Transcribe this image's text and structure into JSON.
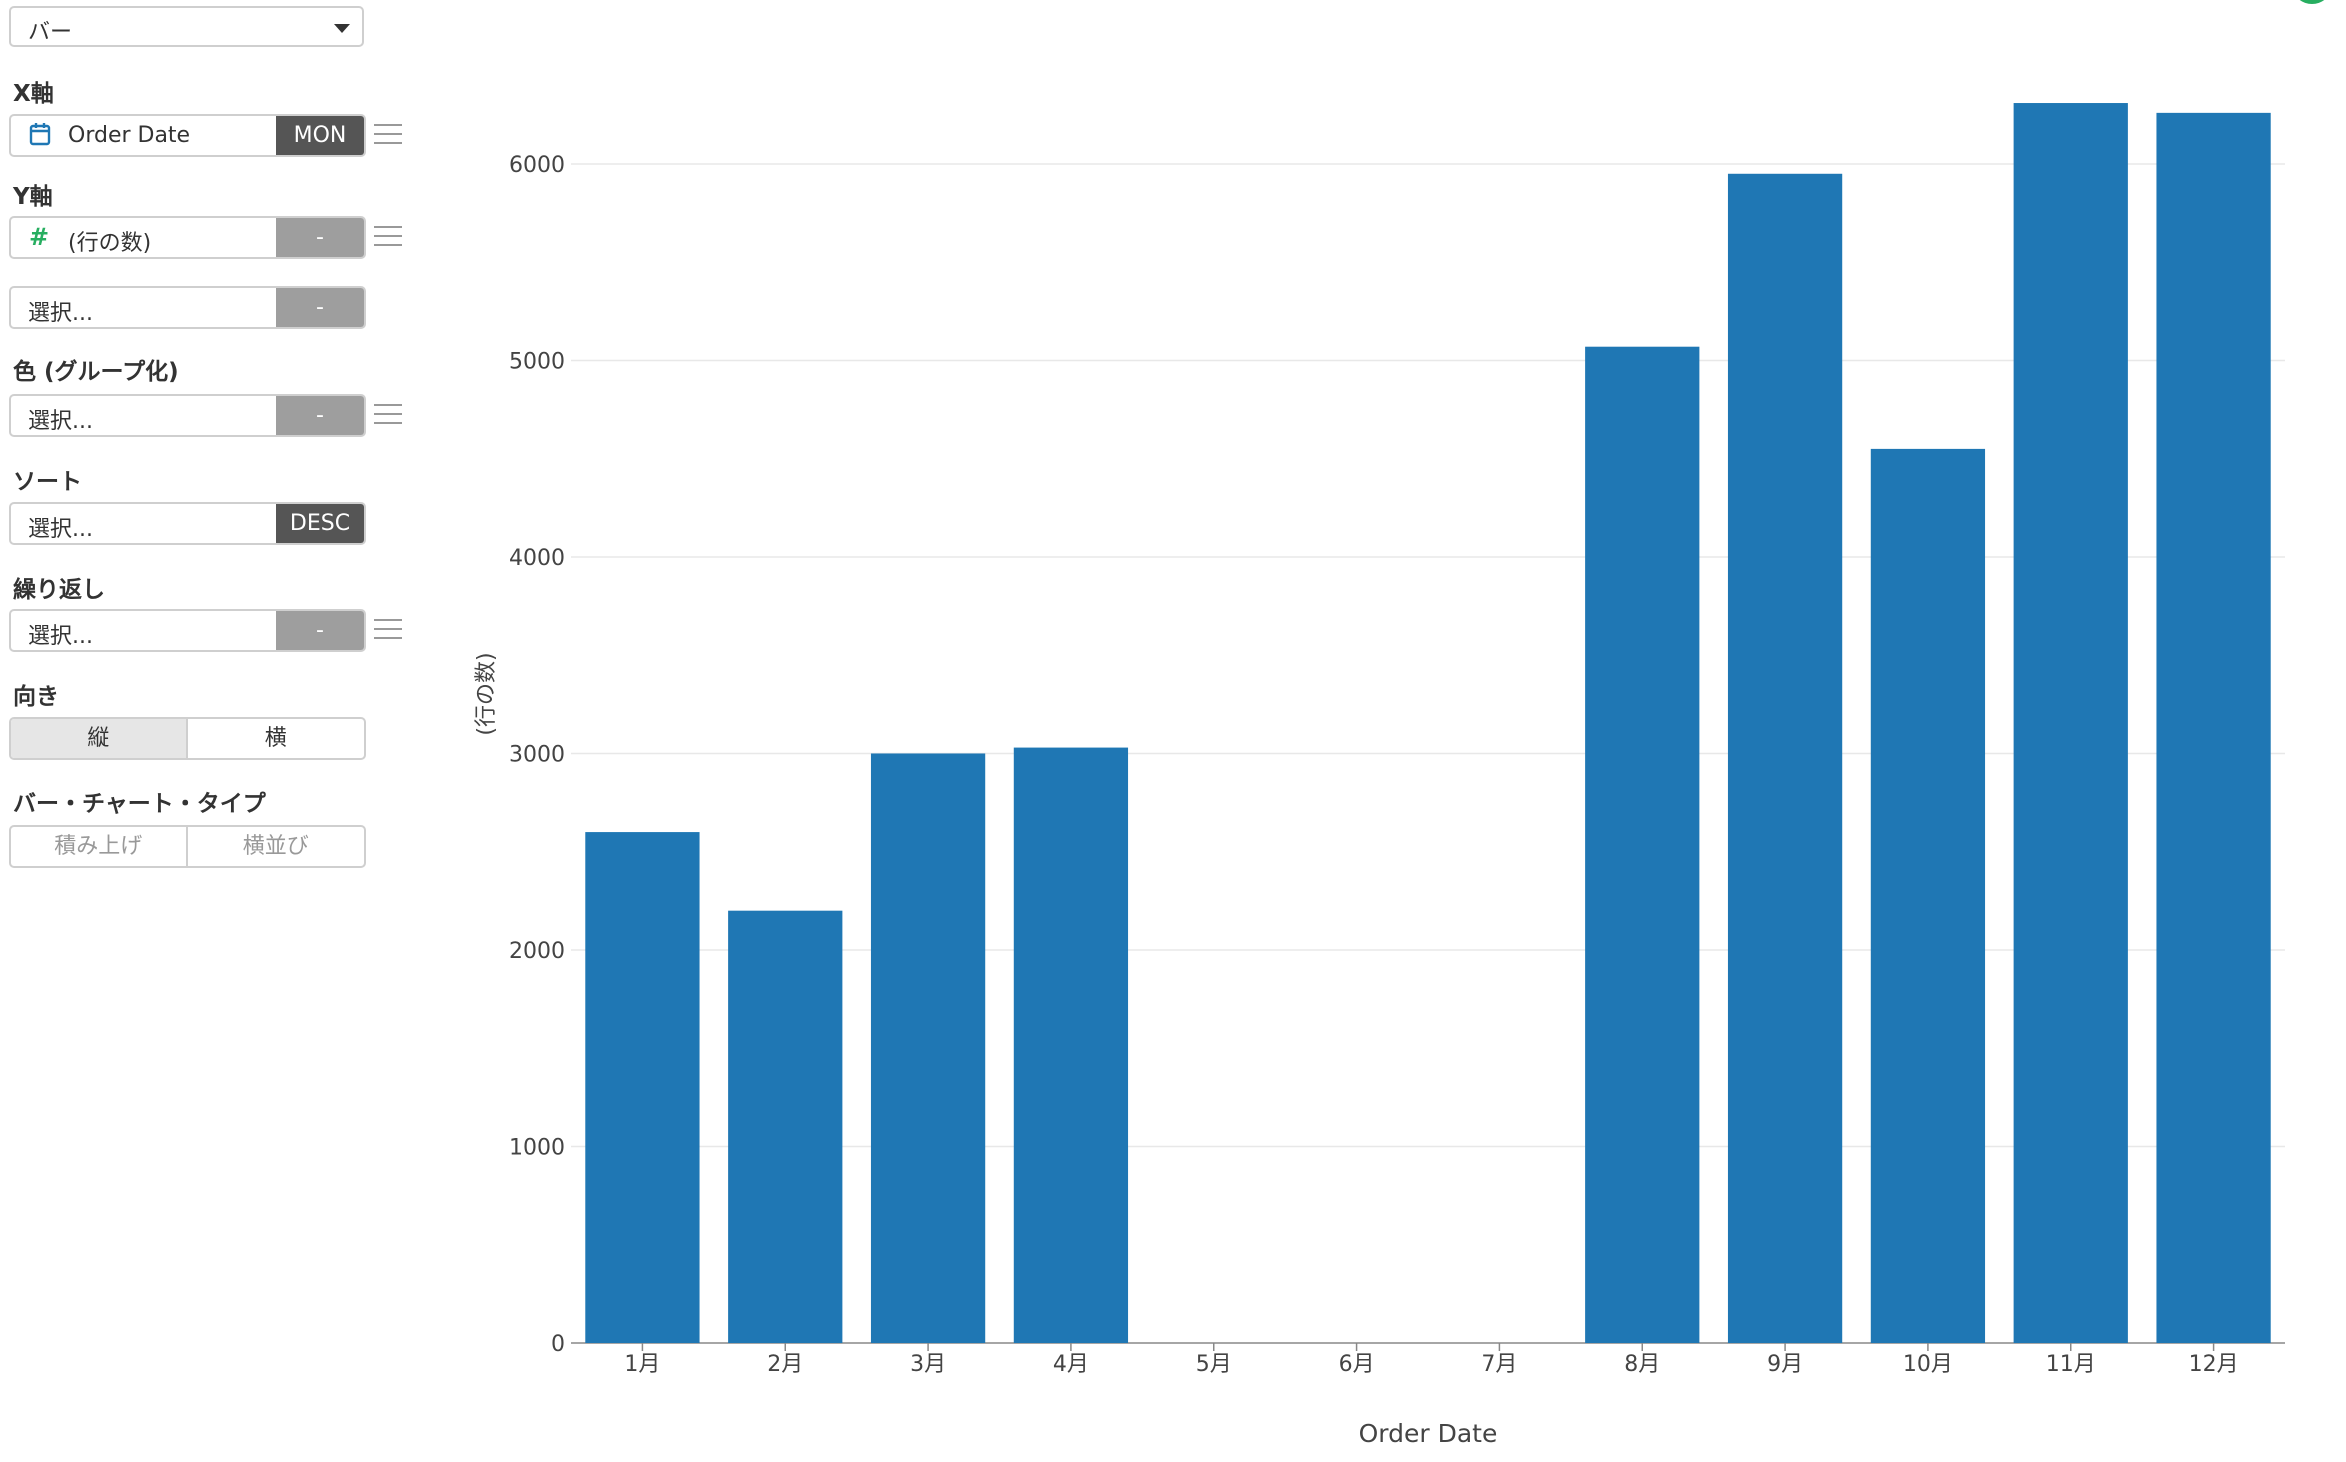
{
  "panel": {
    "chart_type": "バー",
    "x_axis": {
      "label": "X軸",
      "field": "Order Date",
      "agg": "MON"
    },
    "y_axis": {
      "label": "Y軸",
      "field": "(行の数)",
      "agg": "-",
      "second_field": "選択...",
      "second_agg": "-"
    },
    "color": {
      "label": "色 (グループ化)",
      "field": "選択...",
      "agg": "-"
    },
    "sort": {
      "label": "ソート",
      "field": "選択...",
      "order": "DESC"
    },
    "repeat": {
      "label": "繰り返し",
      "field": "選択...",
      "agg": "-"
    },
    "orientation": {
      "label": "向き",
      "options": [
        "縦",
        "横"
      ],
      "selected": "縦"
    },
    "bar_type": {
      "label": "バー・チャート・タイプ",
      "options": [
        "積み上げ",
        "横並び"
      ]
    }
  },
  "icons": {
    "calendar": "calendar-icon",
    "number": "number-icon",
    "menu": "menu-icon"
  },
  "colors": {
    "bar": "#1f77b4",
    "x_icon": "#1f77b4",
    "y_icon": "#27ae60"
  },
  "chart_data": {
    "type": "bar",
    "categories": [
      "1月",
      "2月",
      "3月",
      "4月",
      "5月",
      "6月",
      "7月",
      "8月",
      "9月",
      "10月",
      "11月",
      "12月"
    ],
    "series": [
      {
        "values": [
          2600,
          2200,
          3000,
          3030,
          0,
          0,
          0,
          5070,
          5950,
          4550,
          6310,
          6260
        ]
      }
    ],
    "xlabel": "Order Date",
    "ylabel": "(行の数)",
    "ylim": [
      0,
      6300
    ],
    "yticks": [
      0,
      1000,
      2000,
      3000,
      4000,
      5000,
      6000
    ],
    "grid": true
  }
}
